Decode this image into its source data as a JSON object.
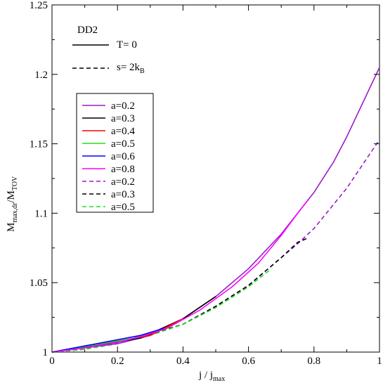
{
  "chart_data": {
    "type": "line",
    "xlim": [
      0,
      1
    ],
    "ylim": [
      1,
      1.25
    ],
    "xticks": [
      0,
      0.2,
      0.4,
      0.6,
      0.8,
      1
    ],
    "yticks": [
      1,
      1.05,
      1.1,
      1.15,
      1.2,
      1.25
    ],
    "xtick_labels": [
      "0",
      "0.2",
      "0.4",
      "0.6",
      "0.8",
      "1"
    ],
    "ytick_labels": [
      "1",
      "1.05",
      "1.1",
      "1.15",
      "1.2",
      "1.25"
    ],
    "xlabel": {
      "main": "j / j",
      "sub": "max"
    },
    "ylabel": {
      "main": "M",
      "sub1": "max,dr",
      "mid": "/M",
      "sub2": "TOV"
    },
    "eos_legend": {
      "title": "DD2",
      "solid_label": "T= 0",
      "dashed_label": {
        "main": "s= 2k",
        "sub": "B"
      }
    },
    "series": [
      {
        "name": "a=0.2",
        "color": "#9a1cc9",
        "dashed": false,
        "points": [
          [
            0,
            1.0
          ],
          [
            0.1,
            1.003
          ],
          [
            0.2,
            1.006
          ],
          [
            0.3,
            1.012
          ],
          [
            0.4,
            1.024
          ],
          [
            0.5,
            1.04
          ],
          [
            0.6,
            1.06
          ],
          [
            0.7,
            1.085
          ],
          [
            0.8,
            1.115
          ],
          [
            0.86,
            1.137
          ],
          [
            0.9,
            1.155
          ],
          [
            1.0,
            1.205
          ]
        ]
      },
      {
        "name": "a=0.3",
        "color": "#000000",
        "dashed": false,
        "points": [
          [
            0,
            1.0
          ],
          [
            0.27,
            1.01
          ],
          [
            0.4,
            1.024
          ],
          [
            0.5,
            1.04
          ]
        ]
      },
      {
        "name": "a=0.4",
        "color": "#ff0000",
        "dashed": false,
        "points": [
          [
            0,
            1.0
          ],
          [
            0.3,
            1.012
          ],
          [
            0.4,
            1.024
          ]
        ]
      },
      {
        "name": "a=0.5",
        "color": "#22dd22",
        "dashed": false,
        "points": [
          [
            0,
            1.0
          ],
          [
            0.25,
            1.01
          ],
          [
            0.35,
            1.017
          ]
        ]
      },
      {
        "name": "a=0.6",
        "color": "#0000ff",
        "dashed": false,
        "points": [
          [
            0,
            1.0
          ],
          [
            0.27,
            1.012
          ],
          [
            0.34,
            1.017
          ]
        ]
      },
      {
        "name": "a=0.8",
        "color": "#ff00ff",
        "dashed": false,
        "points": [
          [
            0,
            1.0
          ],
          [
            0.1,
            1.003
          ],
          [
            0.2,
            1.007
          ],
          [
            0.27,
            1.011
          ],
          [
            0.35,
            1.017
          ],
          [
            0.45,
            1.03
          ],
          [
            0.55,
            1.047
          ],
          [
            0.63,
            1.064
          ],
          [
            0.7,
            1.084
          ],
          [
            0.75,
            1.1
          ],
          [
            0.78,
            1.109
          ]
        ]
      },
      {
        "name": "a=0.2",
        "color": "#9a1cc9",
        "dashed": true,
        "points": [
          [
            0,
            1.0
          ],
          [
            0.1,
            1.002
          ],
          [
            0.2,
            1.007
          ],
          [
            0.3,
            1.013
          ],
          [
            0.4,
            1.02
          ],
          [
            0.5,
            1.033
          ],
          [
            0.6,
            1.048
          ],
          [
            0.7,
            1.068
          ],
          [
            0.75,
            1.078
          ],
          [
            0.8,
            1.089
          ],
          [
            0.9,
            1.118
          ],
          [
            1.0,
            1.153
          ]
        ]
      },
      {
        "name": "a=0.3",
        "color": "#000000",
        "dashed": true,
        "points": [
          [
            0,
            1.0
          ],
          [
            0.1,
            1.002
          ],
          [
            0.2,
            1.007
          ],
          [
            0.3,
            1.013
          ],
          [
            0.4,
            1.02
          ],
          [
            0.5,
            1.033
          ],
          [
            0.6,
            1.048
          ],
          [
            0.7,
            1.068
          ],
          [
            0.75,
            1.079
          ],
          [
            0.78,
            1.082
          ]
        ]
      },
      {
        "name": "a=0.5",
        "color": "#22dd22",
        "dashed": true,
        "points": [
          [
            0,
            1.0
          ],
          [
            0.1,
            1.002
          ],
          [
            0.2,
            1.006
          ],
          [
            0.3,
            1.012
          ],
          [
            0.4,
            1.02
          ],
          [
            0.5,
            1.032
          ],
          [
            0.6,
            1.047
          ],
          [
            0.67,
            1.06
          ]
        ]
      }
    ]
  }
}
